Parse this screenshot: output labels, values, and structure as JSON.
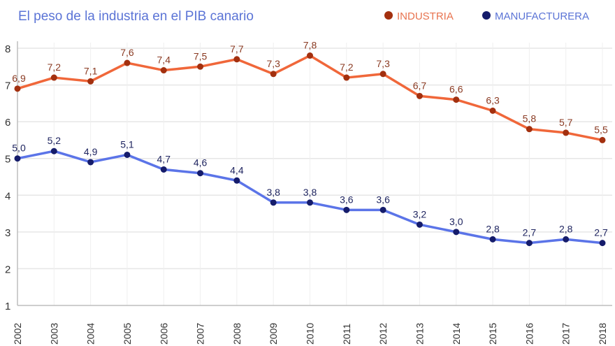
{
  "chart_data": {
    "type": "line",
    "title": "El peso de la industria en el PIB canario",
    "xlabel": "",
    "ylabel": "",
    "x": [
      "2002",
      "2003",
      "2004",
      "2005",
      "2006",
      "2007",
      "2008",
      "2009",
      "2010",
      "2011",
      "2012",
      "2013",
      "2014",
      "2015",
      "2016",
      "2017",
      "2018"
    ],
    "ylim": [
      1,
      8
    ],
    "yticks": [
      "1",
      "2",
      "3",
      "4",
      "5",
      "6",
      "7",
      "8"
    ],
    "grid": true,
    "legend_position": "top-right",
    "series": [
      {
        "name": "INDUSTRIA",
        "line_color": "#f0673a",
        "marker_color": "#a3300f",
        "label_color": "#8a3a22",
        "legend_text_color": "#e8734f",
        "values": [
          6.9,
          7.2,
          7.1,
          7.6,
          7.4,
          7.5,
          7.7,
          7.3,
          7.8,
          7.2,
          7.3,
          6.7,
          6.6,
          6.3,
          5.8,
          5.7,
          5.5
        ],
        "labels": [
          "6,9",
          "7,2",
          "7,1",
          "7,6",
          "7,4",
          "7,5",
          "7,7",
          "7,3",
          "7,8",
          "7,2",
          "7,3",
          "6,7",
          "6,6",
          "6,3",
          "5,8",
          "5,7",
          "5,5"
        ]
      },
      {
        "name": "MANUFACTURERA",
        "line_color": "#5b74e8",
        "marker_color": "#151c6b",
        "label_color": "#1f2560",
        "legend_text_color": "#5b74d6",
        "values": [
          5.0,
          5.2,
          4.9,
          5.1,
          4.7,
          4.6,
          4.4,
          3.8,
          3.8,
          3.6,
          3.6,
          3.2,
          3.0,
          2.8,
          2.7,
          2.8,
          2.7
        ],
        "labels": [
          "5,0",
          "5,2",
          "4,9",
          "5,1",
          "4,7",
          "4,6",
          "4,4",
          "3,8",
          "3,8",
          "3,6",
          "3,6",
          "3,2",
          "3,0",
          "2,8",
          "2,7",
          "2,8",
          "2,7"
        ]
      }
    ]
  }
}
